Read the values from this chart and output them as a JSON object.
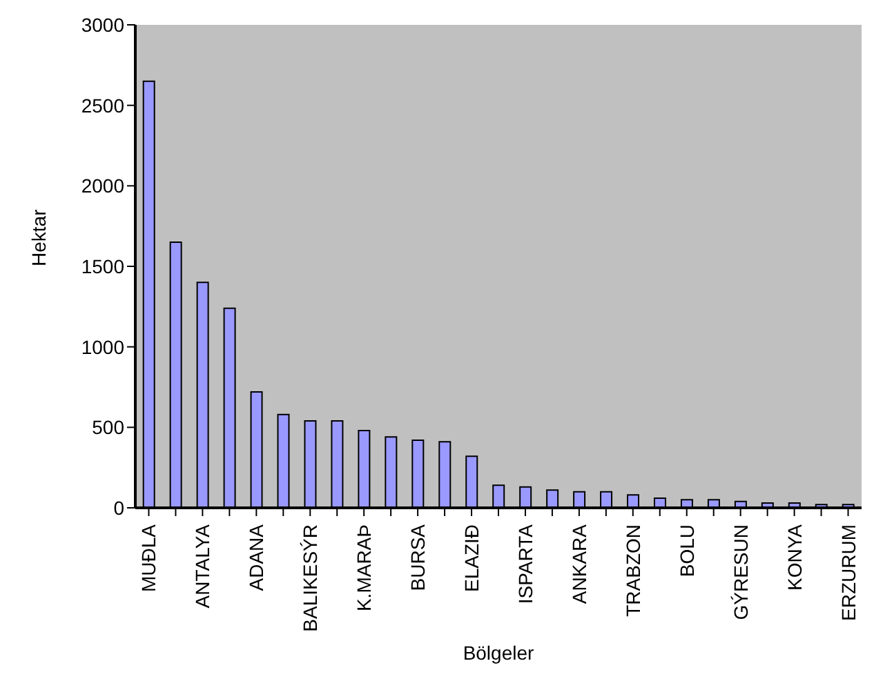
{
  "chart_data": {
    "type": "bar",
    "xlabel": "Bölgeler",
    "ylabel": "Hektar",
    "categories": [
      "MUĐLA",
      null,
      "ANTALYA",
      null,
      "ADANA",
      null,
      "BALIKESÝR",
      null,
      "K.MARAÞ",
      null,
      "BURSA",
      null,
      "ELAZIÐ",
      null,
      "ISPARTA",
      null,
      "ANKARA",
      null,
      "TRABZON",
      null,
      "BOLU",
      null,
      "GÝRESUN",
      null,
      "KONYA",
      null,
      "ERZURUM"
    ],
    "values": [
      2650,
      1650,
      1400,
      1240,
      720,
      580,
      540,
      540,
      480,
      440,
      420,
      410,
      320,
      140,
      130,
      110,
      100,
      100,
      80,
      60,
      50,
      50,
      40,
      30,
      30,
      20,
      20
    ],
    "color": "#9999ff",
    "ylim": [
      0,
      3000
    ],
    "yticks": [
      0,
      500,
      1000,
      1500,
      2000,
      2500,
      3000
    ],
    "grid": false,
    "legend": false
  }
}
